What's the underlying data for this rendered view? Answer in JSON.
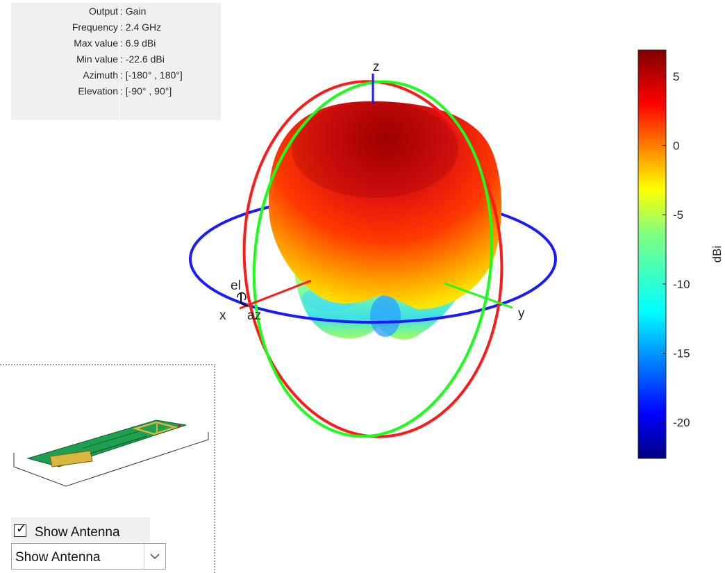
{
  "info": [
    {
      "label": "Output",
      "value": ": Gain"
    },
    {
      "label": "Frequency",
      "value": ": 2.4 GHz"
    },
    {
      "label": "Max value",
      "value": ": 6.9 dBi"
    },
    {
      "label": "Min value",
      "value": ": -22.6 dBi"
    },
    {
      "label": "Azimuth",
      "value": ": [-180° , 180°]"
    },
    {
      "label": "Elevation",
      "value": ": [-90° , 90°]"
    }
  ],
  "axes": {
    "x": "x",
    "y": "y",
    "z": "z",
    "el": "el",
    "az": "az"
  },
  "colors": {
    "x_circle": "#ff1a1a",
    "y_circle": "#1aff1a",
    "z_circle": "#1a1aff"
  },
  "chart_data": {
    "type": "heatmap",
    "title": "",
    "output": "Gain",
    "frequency_ghz": 2.4,
    "max_value_dbi": 6.9,
    "min_value_dbi": -22.6,
    "azimuth_range_deg": [
      -180,
      180
    ],
    "elevation_range_deg": [
      -90,
      90
    ],
    "colorbar": {
      "label": "dBi",
      "ticks": [
        5,
        0,
        -5,
        -10,
        -15,
        -20
      ],
      "range": [
        -22.6,
        6.9
      ],
      "colormap": "jet"
    }
  },
  "controls": {
    "show_antenna_checkbox": {
      "label": "Show Antenna",
      "checked": true
    },
    "show_antenna_select": {
      "value": "Show Antenna"
    }
  }
}
